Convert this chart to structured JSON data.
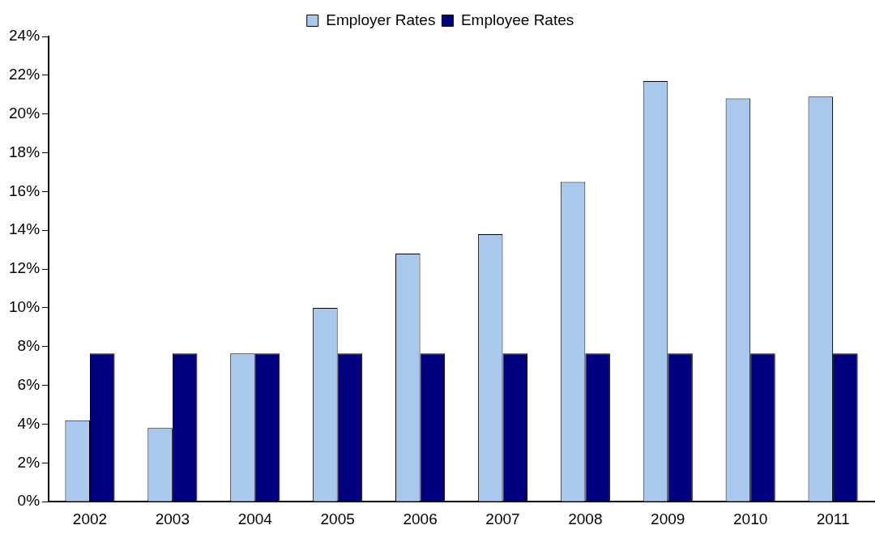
{
  "chart_data": {
    "type": "bar",
    "categories": [
      "2002",
      "2003",
      "2004",
      "2005",
      "2006",
      "2007",
      "2008",
      "2009",
      "2010",
      "2011"
    ],
    "series": [
      {
        "name": "Employer Rates",
        "color": "#a9c8ee",
        "values": [
          4.2,
          3.8,
          7.65,
          10.0,
          12.8,
          13.8,
          16.5,
          21.7,
          20.8,
          20.9
        ]
      },
      {
        "name": "Employee Rates",
        "color": "#000080",
        "values": [
          7.65,
          7.65,
          7.65,
          7.65,
          7.65,
          7.65,
          7.65,
          7.65,
          7.65,
          7.65
        ]
      }
    ],
    "ylim": [
      0,
      24
    ],
    "yticks": [
      {
        "value": 0,
        "label": "0%"
      },
      {
        "value": 2,
        "label": "2%"
      },
      {
        "value": 4,
        "label": "4%"
      },
      {
        "value": 6,
        "label": "6%"
      },
      {
        "value": 8,
        "label": "8%"
      },
      {
        "value": 10,
        "label": "10%"
      },
      {
        "value": 12,
        "label": "12%"
      },
      {
        "value": 14,
        "label": "14%"
      },
      {
        "value": 16,
        "label": "16%"
      },
      {
        "value": 18,
        "label": "18%"
      },
      {
        "value": 20,
        "label": "20%"
      },
      {
        "value": 22,
        "label": "22%"
      },
      {
        "value": 24,
        "label": "24%"
      }
    ],
    "grid": false,
    "legend": "top"
  }
}
